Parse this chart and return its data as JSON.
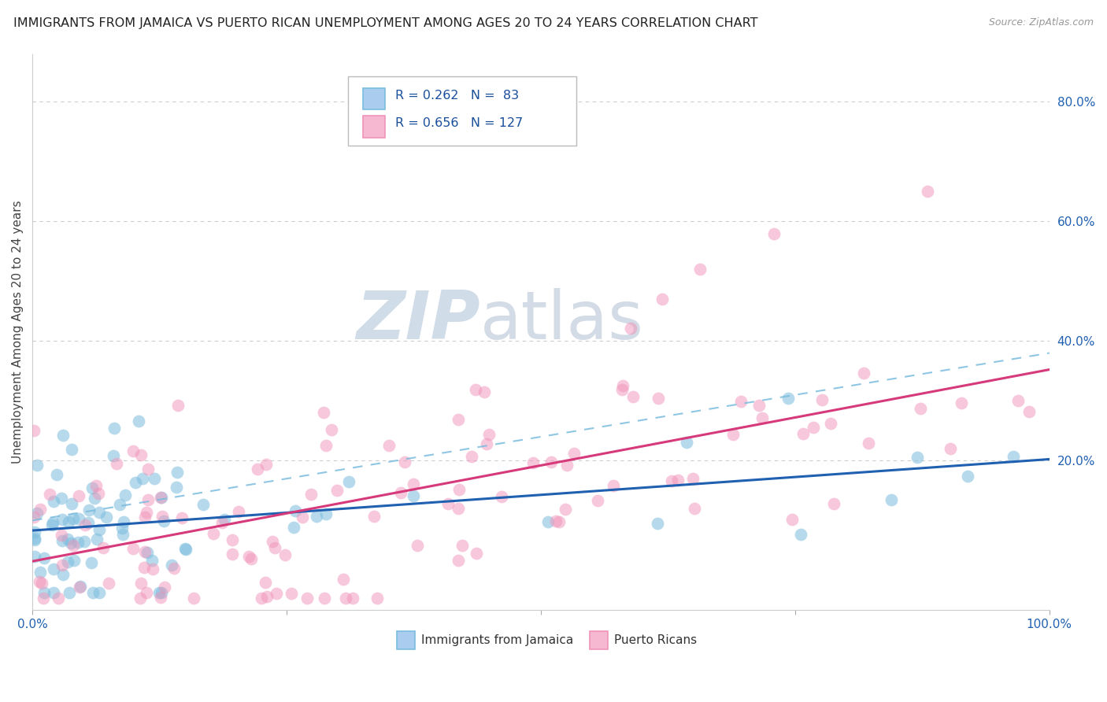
{
  "title": "IMMIGRANTS FROM JAMAICA VS PUERTO RICAN UNEMPLOYMENT AMONG AGES 20 TO 24 YEARS CORRELATION CHART",
  "source": "Source: ZipAtlas.com",
  "ylabel": "Unemployment Among Ages 20 to 24 years",
  "legend_label1": "Immigrants from Jamaica",
  "legend_label2": "Puerto Ricans",
  "R1": 0.262,
  "N1": 83,
  "R2": 0.656,
  "N2": 127,
  "color_jamaica": "#7bbcde",
  "color_pr": "#f093b8",
  "xlim": [
    0.0,
    1.0
  ],
  "ylim": [
    -0.05,
    0.88
  ],
  "yticks": [
    0.0,
    0.2,
    0.4,
    0.6,
    0.8
  ],
  "ytick_labels": [
    "",
    "20.0%",
    "40.0%",
    "60.0%",
    "80.0%"
  ],
  "grid_color": "#cccccc",
  "background_color": "#ffffff",
  "title_fontsize": 11.5,
  "axis_label_fontsize": 11,
  "tick_fontsize": 11,
  "blue_line_color": "#2060b0",
  "pink_line_color": "#d63a7a",
  "dashed_line_color": "#7bbcde",
  "watermark_zip": "ZIP",
  "watermark_atlas": "atlas"
}
